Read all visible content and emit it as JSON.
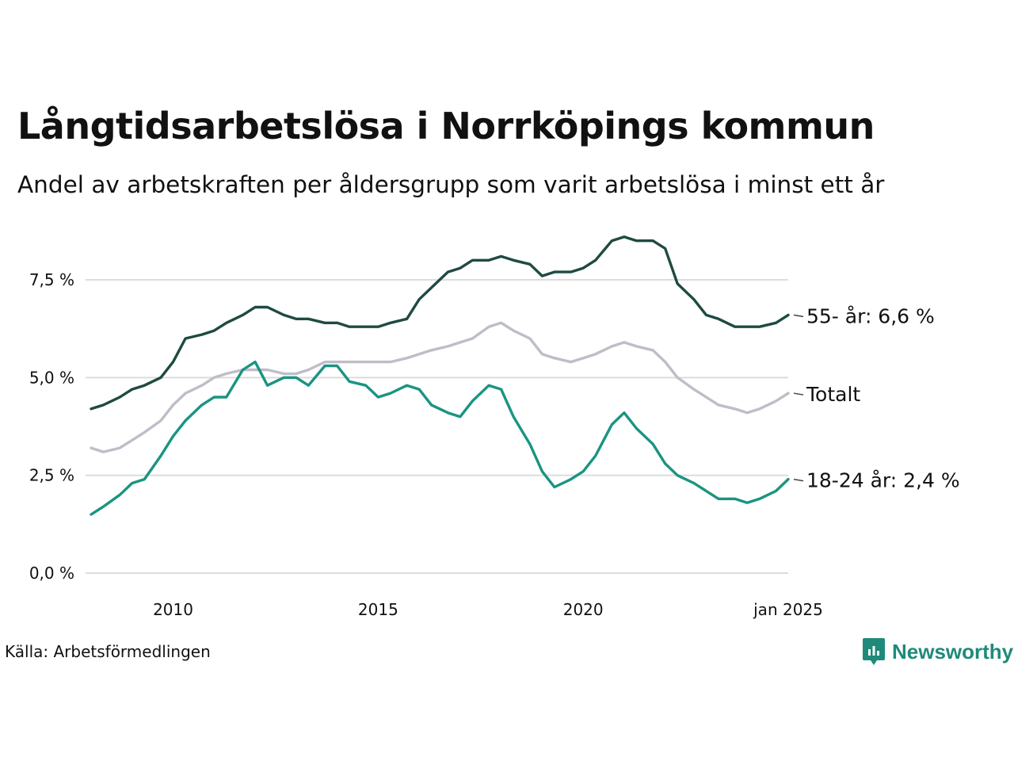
{
  "chart_data": {
    "type": "line",
    "title": "Långtidsarbetslösa i Norrköpings kommun",
    "subtitle": "Andel av arbetskraften per åldersgrupp som varit arbetslösa i minst ett år",
    "source": "Källa: Arbetsförmedlingen",
    "brand": "Newsworthy",
    "xlabel": "",
    "ylabel": "",
    "ylim": [
      0,
      8.7
    ],
    "xlim": [
      2008.0,
      2025.0
    ],
    "yticks": [
      {
        "value": 0,
        "label": "0,0 %"
      },
      {
        "value": 2.5,
        "label": "2,5 %"
      },
      {
        "value": 5,
        "label": "5,0 %"
      },
      {
        "value": 7.5,
        "label": "7,5 %"
      }
    ],
    "xticks": [
      {
        "value": 2010,
        "label": "2010"
      },
      {
        "value": 2015,
        "label": "2015"
      },
      {
        "value": 2020,
        "label": "2020"
      },
      {
        "value": 2025,
        "label": "jan 2025"
      }
    ],
    "series": [
      {
        "name": "55- år",
        "end_label": "55- år: 6,6 %",
        "color": "#1f4a42",
        "points": [
          [
            2008.0,
            4.2
          ],
          [
            2008.3,
            4.3
          ],
          [
            2008.7,
            4.5
          ],
          [
            2009.0,
            4.7
          ],
          [
            2009.3,
            4.8
          ],
          [
            2009.7,
            5.0
          ],
          [
            2010.0,
            5.4
          ],
          [
            2010.3,
            6.0
          ],
          [
            2010.7,
            6.1
          ],
          [
            2011.0,
            6.2
          ],
          [
            2011.3,
            6.4
          ],
          [
            2011.7,
            6.6
          ],
          [
            2012.0,
            6.8
          ],
          [
            2012.3,
            6.8
          ],
          [
            2012.7,
            6.6
          ],
          [
            2013.0,
            6.5
          ],
          [
            2013.3,
            6.5
          ],
          [
            2013.7,
            6.4
          ],
          [
            2014.0,
            6.4
          ],
          [
            2014.3,
            6.3
          ],
          [
            2014.7,
            6.3
          ],
          [
            2015.0,
            6.3
          ],
          [
            2015.3,
            6.4
          ],
          [
            2015.7,
            6.5
          ],
          [
            2016.0,
            7.0
          ],
          [
            2016.3,
            7.3
          ],
          [
            2016.7,
            7.7
          ],
          [
            2017.0,
            7.8
          ],
          [
            2017.3,
            8.0
          ],
          [
            2017.7,
            8.0
          ],
          [
            2018.0,
            8.1
          ],
          [
            2018.3,
            8.0
          ],
          [
            2018.7,
            7.9
          ],
          [
            2019.0,
            7.6
          ],
          [
            2019.3,
            7.7
          ],
          [
            2019.7,
            7.7
          ],
          [
            2020.0,
            7.8
          ],
          [
            2020.3,
            8.0
          ],
          [
            2020.7,
            8.5
          ],
          [
            2021.0,
            8.6
          ],
          [
            2021.3,
            8.5
          ],
          [
            2021.7,
            8.5
          ],
          [
            2022.0,
            8.3
          ],
          [
            2022.3,
            7.4
          ],
          [
            2022.7,
            7.0
          ],
          [
            2023.0,
            6.6
          ],
          [
            2023.3,
            6.5
          ],
          [
            2023.7,
            6.3
          ],
          [
            2024.0,
            6.3
          ],
          [
            2024.3,
            6.3
          ],
          [
            2024.7,
            6.4
          ],
          [
            2025.0,
            6.6
          ]
        ]
      },
      {
        "name": "Totalt",
        "end_label": "Totalt",
        "color": "#c0bcc8",
        "points": [
          [
            2008.0,
            3.2
          ],
          [
            2008.3,
            3.1
          ],
          [
            2008.7,
            3.2
          ],
          [
            2009.0,
            3.4
          ],
          [
            2009.3,
            3.6
          ],
          [
            2009.7,
            3.9
          ],
          [
            2010.0,
            4.3
          ],
          [
            2010.3,
            4.6
          ],
          [
            2010.7,
            4.8
          ],
          [
            2011.0,
            5.0
          ],
          [
            2011.3,
            5.1
          ],
          [
            2011.7,
            5.2
          ],
          [
            2012.0,
            5.2
          ],
          [
            2012.3,
            5.2
          ],
          [
            2012.7,
            5.1
          ],
          [
            2013.0,
            5.1
          ],
          [
            2013.3,
            5.2
          ],
          [
            2013.7,
            5.4
          ],
          [
            2014.0,
            5.4
          ],
          [
            2014.3,
            5.4
          ],
          [
            2014.7,
            5.4
          ],
          [
            2015.0,
            5.4
          ],
          [
            2015.3,
            5.4
          ],
          [
            2015.7,
            5.5
          ],
          [
            2016.0,
            5.6
          ],
          [
            2016.3,
            5.7
          ],
          [
            2016.7,
            5.8
          ],
          [
            2017.0,
            5.9
          ],
          [
            2017.3,
            6.0
          ],
          [
            2017.7,
            6.3
          ],
          [
            2018.0,
            6.4
          ],
          [
            2018.3,
            6.2
          ],
          [
            2018.7,
            6.0
          ],
          [
            2019.0,
            5.6
          ],
          [
            2019.3,
            5.5
          ],
          [
            2019.7,
            5.4
          ],
          [
            2020.0,
            5.5
          ],
          [
            2020.3,
            5.6
          ],
          [
            2020.7,
            5.8
          ],
          [
            2021.0,
            5.9
          ],
          [
            2021.3,
            5.8
          ],
          [
            2021.7,
            5.7
          ],
          [
            2022.0,
            5.4
          ],
          [
            2022.3,
            5.0
          ],
          [
            2022.7,
            4.7
          ],
          [
            2023.0,
            4.5
          ],
          [
            2023.3,
            4.3
          ],
          [
            2023.7,
            4.2
          ],
          [
            2024.0,
            4.1
          ],
          [
            2024.3,
            4.2
          ],
          [
            2024.7,
            4.4
          ],
          [
            2025.0,
            4.6
          ]
        ]
      },
      {
        "name": "18-24 år",
        "end_label": "18-24 år: 2,4 %",
        "color": "#1a9482",
        "points": [
          [
            2008.0,
            1.5
          ],
          [
            2008.3,
            1.7
          ],
          [
            2008.7,
            2.0
          ],
          [
            2009.0,
            2.3
          ],
          [
            2009.3,
            2.4
          ],
          [
            2009.7,
            3.0
          ],
          [
            2010.0,
            3.5
          ],
          [
            2010.3,
            3.9
          ],
          [
            2010.7,
            4.3
          ],
          [
            2011.0,
            4.5
          ],
          [
            2011.3,
            4.5
          ],
          [
            2011.7,
            5.2
          ],
          [
            2012.0,
            5.4
          ],
          [
            2012.3,
            4.8
          ],
          [
            2012.7,
            5.0
          ],
          [
            2013.0,
            5.0
          ],
          [
            2013.3,
            4.8
          ],
          [
            2013.7,
            5.3
          ],
          [
            2014.0,
            5.3
          ],
          [
            2014.3,
            4.9
          ],
          [
            2014.7,
            4.8
          ],
          [
            2015.0,
            4.5
          ],
          [
            2015.3,
            4.6
          ],
          [
            2015.7,
            4.8
          ],
          [
            2016.0,
            4.7
          ],
          [
            2016.3,
            4.3
          ],
          [
            2016.7,
            4.1
          ],
          [
            2017.0,
            4.0
          ],
          [
            2017.3,
            4.4
          ],
          [
            2017.7,
            4.8
          ],
          [
            2018.0,
            4.7
          ],
          [
            2018.3,
            4.0
          ],
          [
            2018.7,
            3.3
          ],
          [
            2019.0,
            2.6
          ],
          [
            2019.3,
            2.2
          ],
          [
            2019.7,
            2.4
          ],
          [
            2020.0,
            2.6
          ],
          [
            2020.3,
            3.0
          ],
          [
            2020.7,
            3.8
          ],
          [
            2021.0,
            4.1
          ],
          [
            2021.3,
            3.7
          ],
          [
            2021.7,
            3.3
          ],
          [
            2022.0,
            2.8
          ],
          [
            2022.3,
            2.5
          ],
          [
            2022.7,
            2.3
          ],
          [
            2023.0,
            2.1
          ],
          [
            2023.3,
            1.9
          ],
          [
            2023.7,
            1.9
          ],
          [
            2024.0,
            1.8
          ],
          [
            2024.3,
            1.9
          ],
          [
            2024.7,
            2.1
          ],
          [
            2025.0,
            2.4
          ]
        ]
      }
    ]
  }
}
